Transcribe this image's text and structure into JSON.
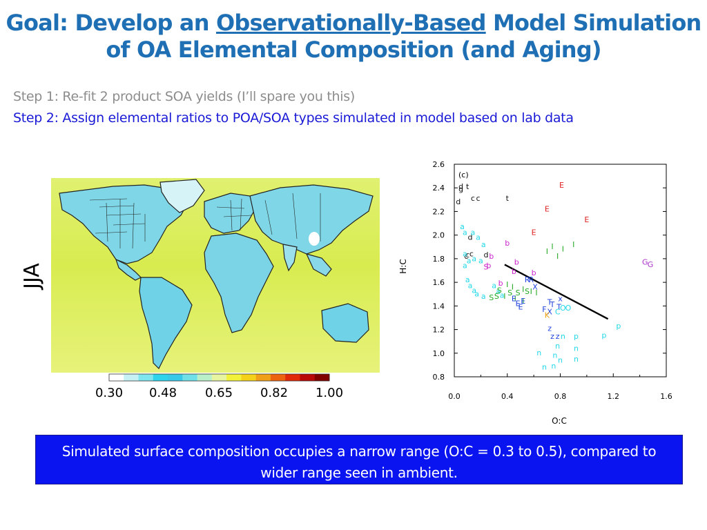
{
  "slide": {
    "title_prefix": "Goal: Develop an ",
    "title_underlined": "Observationally-Based",
    "title_suffix": " Model Simulation",
    "title_line2": "of OA Elemental Composition (and Aging)",
    "step1": "Step 1: Re-fit 2 product SOA yields (I’ll spare you this)",
    "step2": "Step 2: Assign elemental ratios to POA/SOA types simulated in model based on lab data",
    "conclusion": "Simulated surface composition occupies a narrow range  (O:C = 0.3 to 0.5), compared to wider range seen in ambient."
  },
  "map": {
    "season_label": "JJA",
    "colorbar_ticks": [
      "0.30",
      "0.48",
      "0.65",
      "0.82",
      "1.00"
    ],
    "colorbar_colors": [
      "#ffffff",
      "#c6f2f6",
      "#7fe6f0",
      "#2fd4ec",
      "#38c8e8",
      "#6fe0e8",
      "#b9f0c8",
      "#e8f5a0",
      "#f2f23a",
      "#f5d21a",
      "#f0a018",
      "#ec6410",
      "#e02a0a",
      "#b80808",
      "#800000"
    ]
  },
  "chart_data": {
    "type": "scatter",
    "panel_label": "(c)",
    "xlabel": "O:C",
    "ylabel": "H:C",
    "xlim": [
      0.0,
      1.6
    ],
    "ylim": [
      0.8,
      2.6
    ],
    "x_ticks": [
      "0.0",
      "0.4",
      "0.8",
      "1.2",
      "1.6"
    ],
    "y_ticks": [
      "0.8",
      "1.0",
      "1.2",
      "1.4",
      "1.6",
      "1.8",
      "2.0",
      "2.2",
      "2.4",
      "2.6"
    ],
    "line": {
      "x": [
        0.38,
        1.16
      ],
      "y": [
        1.75,
        1.29
      ]
    },
    "points": [
      {
        "l": "g",
        "x": 0.05,
        "y": 2.37,
        "c": "#111111"
      },
      {
        "l": "d",
        "x": 0.05,
        "y": 2.39,
        "c": "#111111"
      },
      {
        "l": "t",
        "x": 0.1,
        "y": 2.39,
        "c": "#111111"
      },
      {
        "l": "c",
        "x": 0.14,
        "y": 2.29,
        "c": "#111111"
      },
      {
        "l": "c",
        "x": 0.18,
        "y": 2.29,
        "c": "#111111"
      },
      {
        "l": "t",
        "x": 0.4,
        "y": 2.29,
        "c": "#111111"
      },
      {
        "l": "d",
        "x": 0.03,
        "y": 2.26,
        "c": "#111111"
      },
      {
        "l": "d",
        "x": 0.12,
        "y": 1.96,
        "c": "#111111"
      },
      {
        "l": "c",
        "x": 0.1,
        "y": 1.81,
        "c": "#111111"
      },
      {
        "l": "c",
        "x": 0.13,
        "y": 1.82,
        "c": "#111111"
      },
      {
        "l": "c",
        "x": 0.09,
        "y": 1.8,
        "c": "#111111"
      },
      {
        "l": "d",
        "x": 0.24,
        "y": 1.81,
        "c": "#111111"
      },
      {
        "l": "E",
        "x": 0.81,
        "y": 2.4,
        "c": "#e02020"
      },
      {
        "l": "E",
        "x": 0.7,
        "y": 2.2,
        "c": "#e02020"
      },
      {
        "l": "E",
        "x": 1.0,
        "y": 2.11,
        "c": "#e02020"
      },
      {
        "l": "E",
        "x": 0.6,
        "y": 2.0,
        "c": "#e02020"
      },
      {
        "l": "b",
        "x": 0.4,
        "y": 1.91,
        "c": "#cc22cc"
      },
      {
        "l": "b",
        "x": 0.28,
        "y": 1.8,
        "c": "#cc22cc"
      },
      {
        "l": "b",
        "x": 0.26,
        "y": 1.72,
        "c": "#cc22cc"
      },
      {
        "l": "b",
        "x": 0.47,
        "y": 1.75,
        "c": "#cc22cc"
      },
      {
        "l": "b",
        "x": 0.45,
        "y": 1.67,
        "c": "#cc22cc"
      },
      {
        "l": "b",
        "x": 0.6,
        "y": 1.66,
        "c": "#cc22cc"
      },
      {
        "l": "b",
        "x": 0.35,
        "y": 1.57,
        "c": "#cc22cc"
      },
      {
        "l": "S",
        "x": 0.24,
        "y": 1.71,
        "c": "#cc22cc"
      },
      {
        "l": "G",
        "x": 1.44,
        "y": 1.75,
        "c": "#aa33cc"
      },
      {
        "l": "G",
        "x": 1.48,
        "y": 1.73,
        "c": "#aa33cc"
      },
      {
        "l": "a",
        "x": 0.06,
        "y": 2.05,
        "c": "#22d8e8"
      },
      {
        "l": "a",
        "x": 0.08,
        "y": 2.0,
        "c": "#22d8e8"
      },
      {
        "l": "a",
        "x": 0.14,
        "y": 2.0,
        "c": "#22d8e8"
      },
      {
        "l": "a",
        "x": 0.18,
        "y": 1.96,
        "c": "#22d8e8"
      },
      {
        "l": "a",
        "x": 0.22,
        "y": 1.9,
        "c": "#22d8e8"
      },
      {
        "l": "a",
        "x": 0.08,
        "y": 1.82,
        "c": "#22d8e8"
      },
      {
        "l": "a",
        "x": 0.11,
        "y": 1.76,
        "c": "#22d8e8"
      },
      {
        "l": "a",
        "x": 0.15,
        "y": 1.78,
        "c": "#22d8e8"
      },
      {
        "l": "a",
        "x": 0.2,
        "y": 1.76,
        "c": "#22d8e8"
      },
      {
        "l": "a",
        "x": 0.08,
        "y": 1.72,
        "c": "#22d8e8"
      },
      {
        "l": "a",
        "x": 0.1,
        "y": 1.6,
        "c": "#22d8e8"
      },
      {
        "l": "a",
        "x": 0.12,
        "y": 1.55,
        "c": "#22d8e8"
      },
      {
        "l": "a",
        "x": 0.15,
        "y": 1.51,
        "c": "#22d8e8"
      },
      {
        "l": "a",
        "x": 0.17,
        "y": 1.48,
        "c": "#22d8e8"
      },
      {
        "l": "a",
        "x": 0.3,
        "y": 1.55,
        "c": "#22d8e8"
      },
      {
        "l": "a",
        "x": 0.33,
        "y": 1.5,
        "c": "#22d8e8"
      },
      {
        "l": "a",
        "x": 0.22,
        "y": 1.46,
        "c": "#22d8e8"
      },
      {
        "l": "a",
        "x": 0.36,
        "y": 1.47,
        "c": "#22d8e8"
      },
      {
        "l": "S",
        "x": 0.34,
        "y": 1.51,
        "c": "#22aa22"
      },
      {
        "l": "S",
        "x": 0.42,
        "y": 1.49,
        "c": "#22aa22"
      },
      {
        "l": "S",
        "x": 0.48,
        "y": 1.49,
        "c": "#22aa22"
      },
      {
        "l": "S",
        "x": 0.55,
        "y": 1.5,
        "c": "#22aa22"
      },
      {
        "l": "S",
        "x": 0.28,
        "y": 1.45,
        "c": "#22aa22"
      },
      {
        "l": "S",
        "x": 0.32,
        "y": 1.46,
        "c": "#22aa22"
      },
      {
        "l": "I",
        "x": 0.4,
        "y": 1.56,
        "c": "#22aa22"
      },
      {
        "l": "I",
        "x": 0.44,
        "y": 1.54,
        "c": "#22aa22"
      },
      {
        "l": "I",
        "x": 0.52,
        "y": 1.52,
        "c": "#22aa22"
      },
      {
        "l": "I",
        "x": 0.58,
        "y": 1.5,
        "c": "#22aa22"
      },
      {
        "l": "I",
        "x": 0.62,
        "y": 1.49,
        "c": "#22aa22"
      },
      {
        "l": "I",
        "x": 0.38,
        "y": 1.46,
        "c": "#22aa22"
      },
      {
        "l": "I",
        "x": 0.46,
        "y": 1.44,
        "c": "#22aa22"
      },
      {
        "l": "I",
        "x": 0.52,
        "y": 1.42,
        "c": "#22aa22"
      },
      {
        "l": "I",
        "x": 0.7,
        "y": 1.84,
        "c": "#22aa22"
      },
      {
        "l": "I",
        "x": 0.74,
        "y": 1.88,
        "c": "#22aa22"
      },
      {
        "l": "I",
        "x": 0.78,
        "y": 1.8,
        "c": "#22aa22"
      },
      {
        "l": "I",
        "x": 0.82,
        "y": 1.86,
        "c": "#22aa22"
      },
      {
        "l": "I",
        "x": 0.9,
        "y": 1.9,
        "c": "#22aa22"
      },
      {
        "l": "R",
        "x": 0.55,
        "y": 1.6,
        "c": "#2244dd"
      },
      {
        "l": "R",
        "x": 0.58,
        "y": 1.6,
        "c": "#2244dd"
      },
      {
        "l": "X",
        "x": 0.61,
        "y": 1.54,
        "c": "#2244dd"
      },
      {
        "l": "x",
        "x": 0.8,
        "y": 1.44,
        "c": "#2244dd"
      },
      {
        "l": "E",
        "x": 0.45,
        "y": 1.44,
        "c": "#2244dd"
      },
      {
        "l": "E",
        "x": 0.48,
        "y": 1.4,
        "c": "#2244dd"
      },
      {
        "l": "E",
        "x": 0.52,
        "y": 1.42,
        "c": "#2244dd"
      },
      {
        "l": "E",
        "x": 0.5,
        "y": 1.37,
        "c": "#2244dd"
      },
      {
        "l": "T",
        "x": 0.72,
        "y": 1.41,
        "c": "#2244dd"
      },
      {
        "l": "T",
        "x": 0.79,
        "y": 1.37,
        "c": "#2244dd"
      },
      {
        "l": "T",
        "x": 0.74,
        "y": 1.39,
        "c": "#2244dd"
      },
      {
        "l": "F",
        "x": 0.68,
        "y": 1.35,
        "c": "#2244dd"
      },
      {
        "l": "X",
        "x": 0.72,
        "y": 1.33,
        "c": "#2244dd"
      },
      {
        "l": "K",
        "x": 0.7,
        "y": 1.3,
        "c": "#f0a010"
      },
      {
        "l": "C",
        "x": 0.78,
        "y": 1.33,
        "c": "#22d8e8"
      },
      {
        "l": "O",
        "x": 0.82,
        "y": 1.36,
        "c": "#22d8e8"
      },
      {
        "l": "O",
        "x": 0.86,
        "y": 1.36,
        "c": "#22d8e8"
      },
      {
        "l": "z",
        "x": 0.72,
        "y": 1.19,
        "c": "#2244dd"
      },
      {
        "l": "z",
        "x": 0.74,
        "y": 1.12,
        "c": "#2244dd"
      },
      {
        "l": "z",
        "x": 0.78,
        "y": 1.12,
        "c": "#2244dd"
      },
      {
        "l": "n",
        "x": 0.82,
        "y": 1.12,
        "c": "#22d8e8"
      },
      {
        "l": "n",
        "x": 0.78,
        "y": 1.04,
        "c": "#22d8e8"
      },
      {
        "l": "n",
        "x": 0.64,
        "y": 0.98,
        "c": "#22d8e8"
      },
      {
        "l": "n",
        "x": 0.76,
        "y": 0.96,
        "c": "#22d8e8"
      },
      {
        "l": "n",
        "x": 0.8,
        "y": 0.92,
        "c": "#22d8e8"
      },
      {
        "l": "n",
        "x": 0.92,
        "y": 1.02,
        "c": "#22d8e8"
      },
      {
        "l": "n",
        "x": 0.92,
        "y": 0.93,
        "c": "#22d8e8"
      },
      {
        "l": "n",
        "x": 0.68,
        "y": 0.86,
        "c": "#22d8e8"
      },
      {
        "l": "n",
        "x": 0.75,
        "y": 0.87,
        "c": "#22d8e8"
      },
      {
        "l": "p",
        "x": 0.92,
        "y": 1.12,
        "c": "#22d8e8"
      },
      {
        "l": "p",
        "x": 1.13,
        "y": 1.13,
        "c": "#22d8e8"
      },
      {
        "l": "p",
        "x": 1.24,
        "y": 1.21,
        "c": "#22d8e8"
      }
    ]
  }
}
